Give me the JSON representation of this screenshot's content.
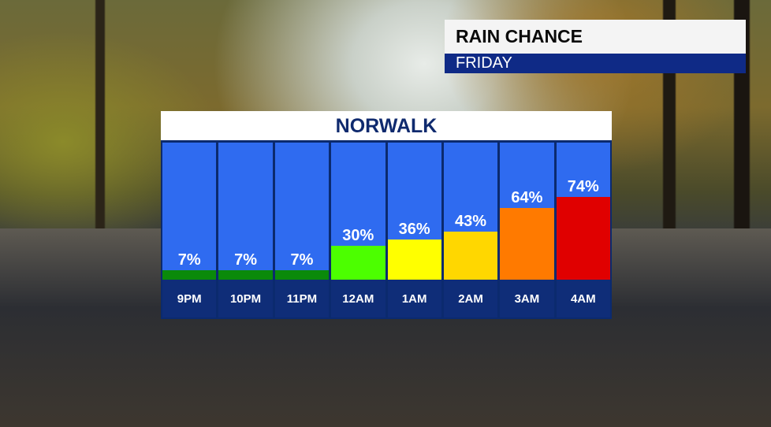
{
  "header": {
    "title": "RAIN CHANCE",
    "day": "FRIDAY"
  },
  "chart_data": {
    "type": "bar",
    "title": "NORWALK",
    "categories": [
      "9PM",
      "10PM",
      "11PM",
      "12AM",
      "1AM",
      "2AM",
      "3AM",
      "4AM"
    ],
    "values": [
      7,
      7,
      7,
      30,
      36,
      43,
      64,
      74
    ],
    "value_labels": [
      "7%",
      "7%",
      "7%",
      "30%",
      "36%",
      "43%",
      "64%",
      "74%"
    ],
    "bar_colors": [
      "#0a8a0a",
      "#0a8a0a",
      "#0a8a0a",
      "#4cff00",
      "#ffff00",
      "#ffd700",
      "#ff7a00",
      "#e00000"
    ],
    "background_color": "#2f6bf0",
    "label_color": "#0f2d78"
  }
}
